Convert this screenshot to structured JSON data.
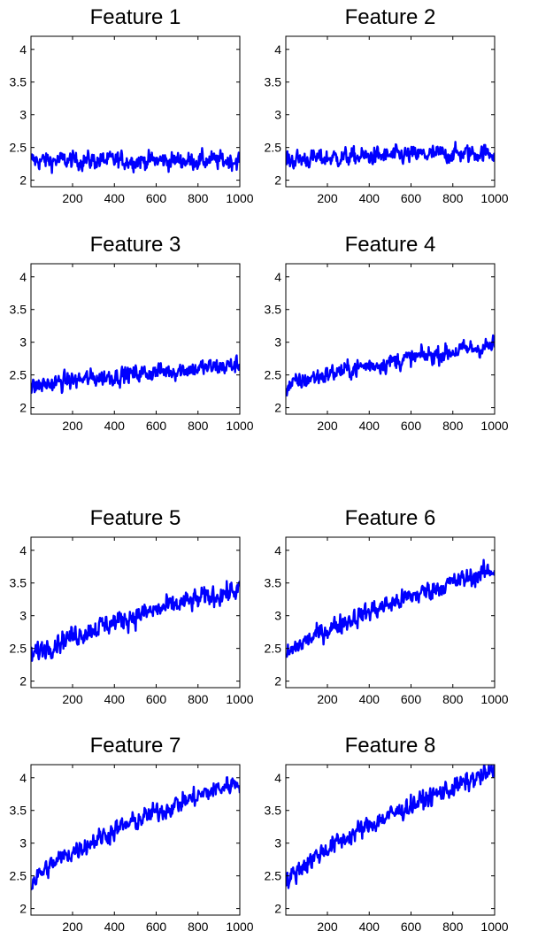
{
  "line_color": "#0000ff",
  "chart_data": [
    {
      "type": "line",
      "title": "Feature 1",
      "xlim": [
        1,
        1000
      ],
      "ylim": [
        1.9,
        4.2
      ],
      "x_ticks": [
        200,
        400,
        600,
        800,
        1000
      ],
      "y_ticks": [
        2,
        2.5,
        3,
        3.5,
        4
      ],
      "trend": {
        "start": 2.3,
        "end": 2.3,
        "noise": 0.12
      }
    },
    {
      "type": "line",
      "title": "Feature 2",
      "xlim": [
        1,
        1000
      ],
      "ylim": [
        1.9,
        4.2
      ],
      "x_ticks": [
        200,
        400,
        600,
        800,
        1000
      ],
      "y_ticks": [
        2,
        2.5,
        3,
        3.5,
        4
      ],
      "trend": {
        "start": 2.3,
        "end": 2.42,
        "noise": 0.12
      }
    },
    {
      "type": "line",
      "title": "Feature 3",
      "xlim": [
        1,
        1000
      ],
      "ylim": [
        1.9,
        4.2
      ],
      "x_ticks": [
        200,
        400,
        600,
        800,
        1000
      ],
      "y_ticks": [
        2,
        2.5,
        3,
        3.5,
        4
      ],
      "trend": {
        "start": 2.3,
        "end": 2.65,
        "noise": 0.12
      }
    },
    {
      "type": "line",
      "title": "Feature 4",
      "xlim": [
        1,
        1000
      ],
      "ylim": [
        1.9,
        4.2
      ],
      "x_ticks": [
        200,
        400,
        600,
        800,
        1000
      ],
      "y_ticks": [
        2,
        2.5,
        3,
        3.5,
        4
      ],
      "trend": {
        "start": 2.3,
        "end": 2.95,
        "noise": 0.12
      }
    },
    {
      "type": "line",
      "title": "Feature 5",
      "xlim": [
        1,
        1000
      ],
      "ylim": [
        1.9,
        4.2
      ],
      "x_ticks": [
        200,
        400,
        600,
        800,
        1000
      ],
      "y_ticks": [
        2,
        2.5,
        3,
        3.5,
        4
      ],
      "trend": {
        "start": 2.35,
        "end": 3.4,
        "noise": 0.14
      }
    },
    {
      "type": "line",
      "title": "Feature 6",
      "xlim": [
        1,
        1000
      ],
      "ylim": [
        1.9,
        4.2
      ],
      "x_ticks": [
        200,
        400,
        600,
        800,
        1000
      ],
      "y_ticks": [
        2,
        2.5,
        3,
        3.5,
        4
      ],
      "trend": {
        "start": 2.35,
        "end": 3.7,
        "noise": 0.13
      }
    },
    {
      "type": "line",
      "title": "Feature 7",
      "xlim": [
        1,
        1000
      ],
      "ylim": [
        1.9,
        4.2
      ],
      "x_ticks": [
        200,
        400,
        600,
        800,
        1000
      ],
      "y_ticks": [
        2,
        2.5,
        3,
        3.5,
        4
      ],
      "trend": {
        "start": 2.35,
        "end": 3.95,
        "noise": 0.13
      }
    },
    {
      "type": "line",
      "title": "Feature 8",
      "xlim": [
        1,
        1000
      ],
      "ylim": [
        1.9,
        4.2
      ],
      "x_ticks": [
        200,
        400,
        600,
        800,
        1000
      ],
      "y_ticks": [
        2,
        2.5,
        3,
        3.5,
        4
      ],
      "trend": {
        "start": 2.35,
        "end": 4.1,
        "noise": 0.13
      }
    }
  ]
}
